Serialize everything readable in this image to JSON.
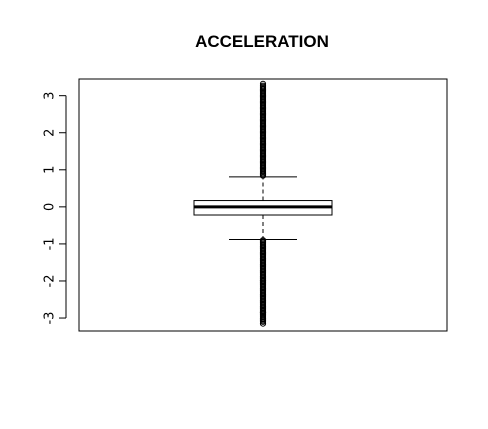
{
  "chart_data": {
    "type": "box",
    "title": "ACCELERATION",
    "xlabel": "",
    "ylabel": "",
    "ylim": [
      -3.35,
      3.45
    ],
    "yticks": [
      3,
      2,
      1,
      0,
      -1,
      -2,
      -3
    ],
    "ytick_labels": [
      "3",
      "2",
      "1",
      "0",
      "-1",
      "-2",
      "-3"
    ],
    "box": {
      "median": 0.0,
      "q1": -0.22,
      "q3": 0.17,
      "whisker_low": -0.88,
      "whisker_high": 0.81
    },
    "outliers_high_range": [
      0.83,
      3.27
    ],
    "outliers_low_range": [
      -3.12,
      -0.9
    ],
    "outliers_isolated": [
      3.32,
      -2.0,
      -2.85,
      -3.15
    ],
    "grid": false,
    "legend": "none",
    "colors": {
      "axis": "#000000",
      "box_fill": "#ffffff",
      "outlier": "#000000"
    }
  }
}
